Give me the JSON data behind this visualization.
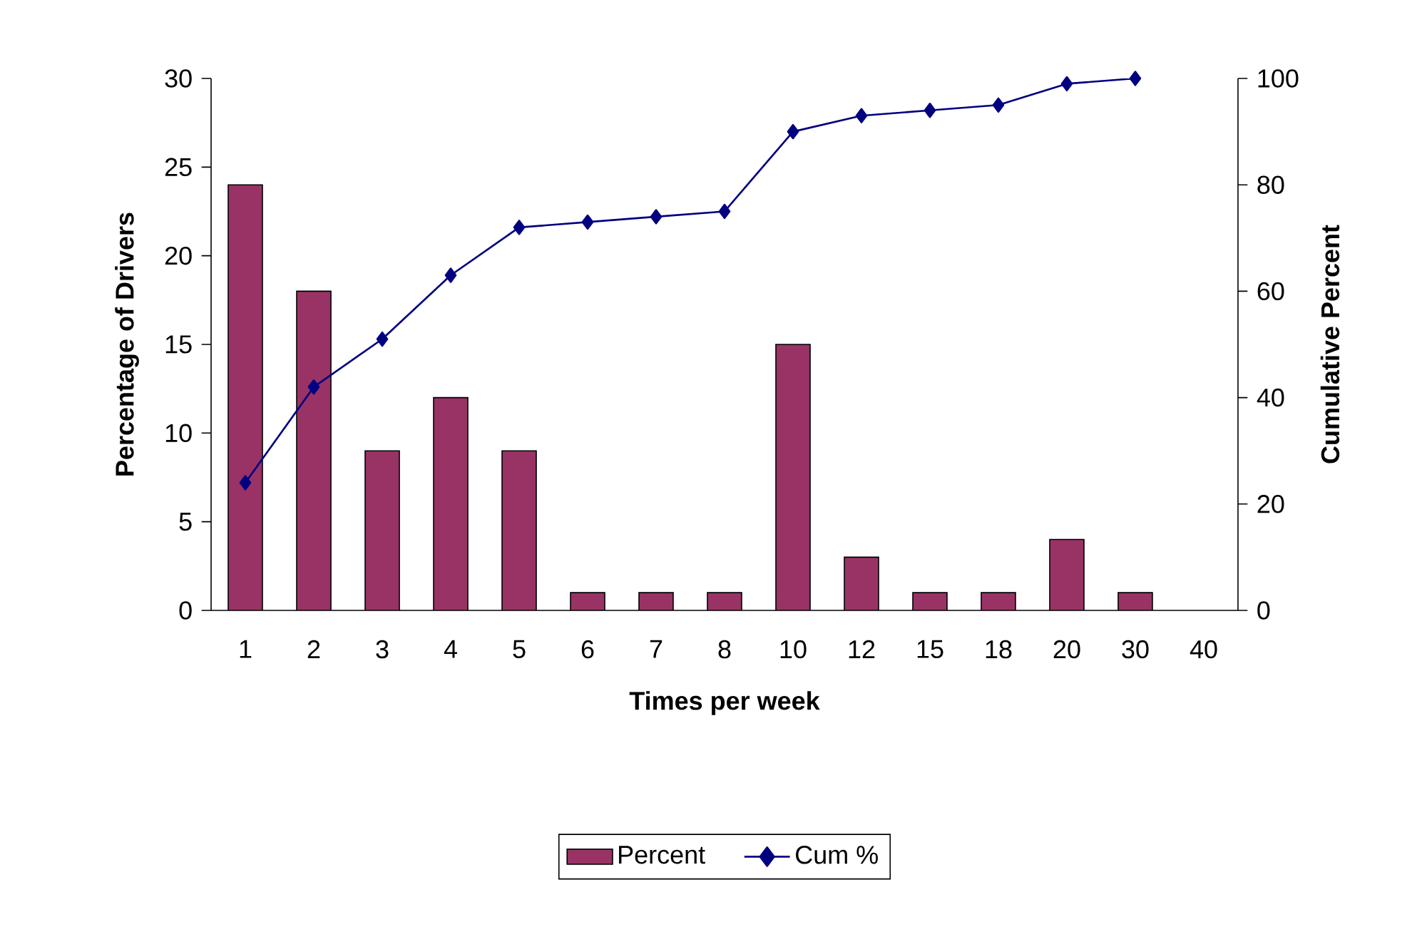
{
  "chart_data": {
    "type": "bar",
    "categories": [
      "1",
      "2",
      "3",
      "4",
      "5",
      "6",
      "7",
      "8",
      "10",
      "12",
      "15",
      "18",
      "20",
      "30",
      "40"
    ],
    "series": [
      {
        "name": "Percent",
        "color": "#993366",
        "values": [
          24,
          18,
          9,
          12,
          9,
          1,
          1,
          1,
          15,
          3,
          1,
          1,
          4,
          1,
          null
        ]
      },
      {
        "name": "Cum %",
        "color": "#000080",
        "type": "line",
        "axis": "y2",
        "marker": "diamond",
        "values": [
          24,
          42,
          51,
          63,
          72,
          73,
          74,
          75,
          90,
          93,
          94,
          95,
          99,
          100,
          null
        ]
      }
    ],
    "xlabel": "Times per week",
    "ylabel": "Percentage of Drivers",
    "y2label": "Cumulative Percent",
    "ylim": [
      0,
      30
    ],
    "yticks": [
      0,
      5,
      10,
      15,
      20,
      25,
      30
    ],
    "y2lim": [
      0,
      100
    ],
    "y2ticks": [
      0,
      20,
      40,
      60,
      80,
      100
    ],
    "legend": "bottom"
  }
}
